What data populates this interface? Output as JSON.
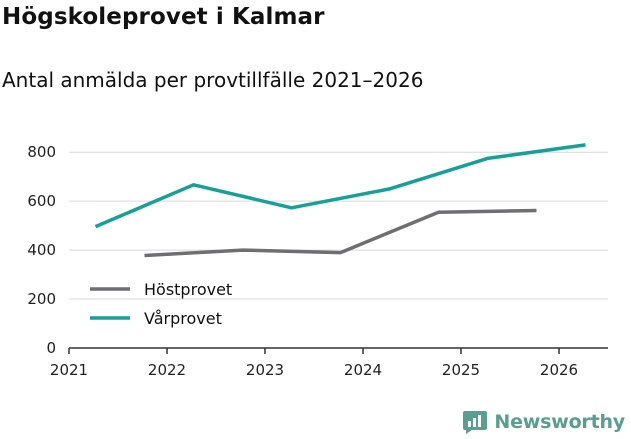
{
  "header": {
    "title": "Högskoleprovet i Kalmar",
    "subtitle": "Antal anmälda per provtillfälle 2021–2026"
  },
  "brand": {
    "name": "Newsworthy"
  },
  "colors": {
    "host": "#6e6e73",
    "var": "#17a095",
    "grid": "#d9d9d9",
    "axis": "#333333",
    "brand": "#5a9e8f"
  },
  "chart_data": {
    "type": "line",
    "title": "Högskoleprovet i Kalmar",
    "subtitle": "Antal anmälda per provtillfälle 2021–2026",
    "xlabel": "",
    "ylabel": "",
    "xlim": [
      2021,
      2026.5
    ],
    "ylim": [
      0,
      850
    ],
    "x_ticks": [
      "2021",
      "2022",
      "2023",
      "2024",
      "2025",
      "2026"
    ],
    "y_ticks": [
      "0",
      "200",
      "400",
      "600",
      "800"
    ],
    "legend_position": "left-bottom",
    "series": [
      {
        "name": "Höstprovet",
        "x": [
          2021.77,
          2022.77,
          2023.77,
          2024.77,
          2025.77
        ],
        "y": [
          378,
          400,
          390,
          555,
          562
        ]
      },
      {
        "name": "Vårprovet",
        "x": [
          2021.27,
          2022.27,
          2023.27,
          2024.27,
          2025.27,
          2026.27
        ],
        "y": [
          496,
          667,
          573,
          650,
          775,
          830
        ]
      }
    ]
  }
}
